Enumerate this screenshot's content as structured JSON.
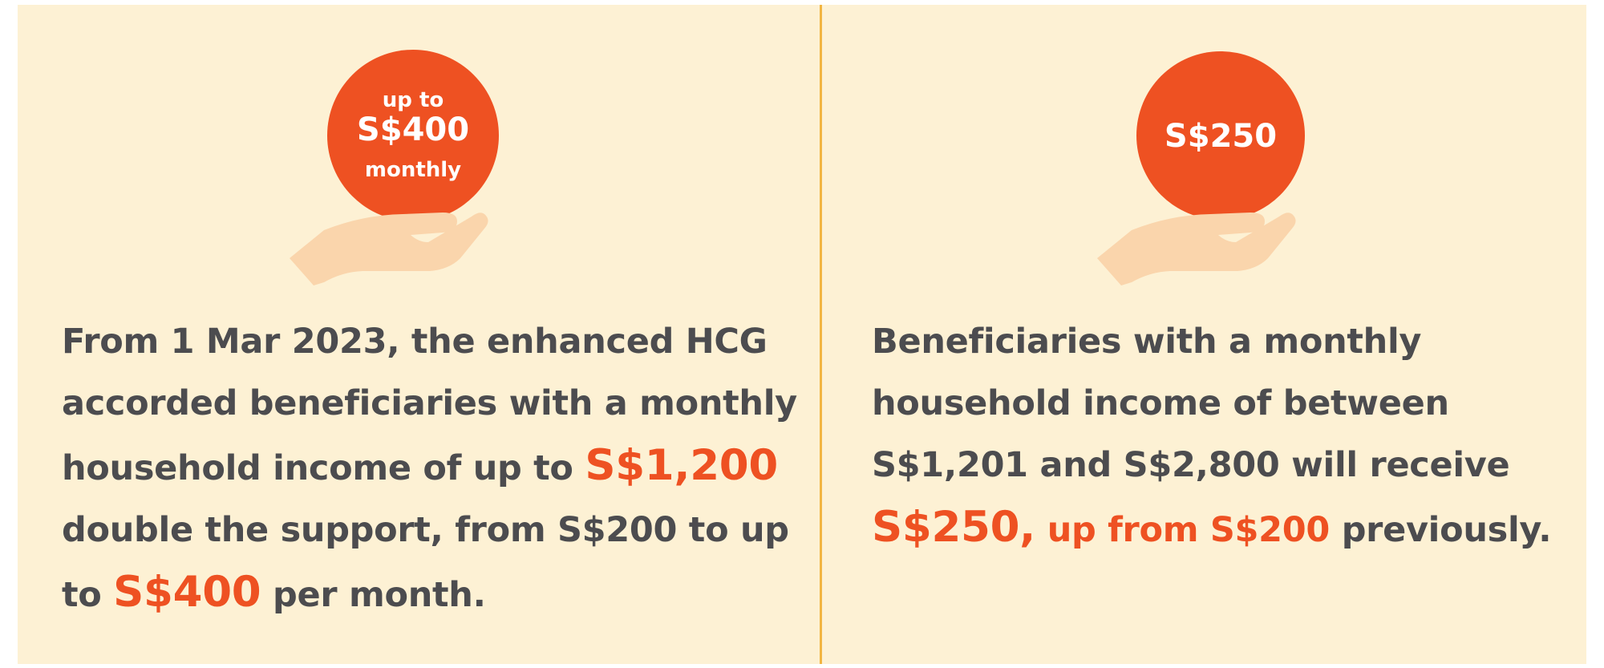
{
  "colors": {
    "background": "#fdf1d4",
    "divider": "#f2b542",
    "coin": "#ee5122",
    "hand": "#fad5ac",
    "text": "#4c4c4f",
    "highlight": "#ee5122"
  },
  "left": {
    "coin": {
      "line1": "up to",
      "line2": "S$400",
      "line3": "monthly"
    },
    "hand_icon": "hand-holding-coin-icon",
    "text": {
      "p1": "From 1 Mar 2023, the enhanced HCG accorded beneficiaries with a monthly household income of up to",
      "hl1": "S$1,200",
      "p2": "double the support, from S$200 to up to",
      "hl2": "S$400",
      "p3": "per month."
    }
  },
  "right": {
    "coin": {
      "line1": "S$250"
    },
    "hand_icon": "hand-holding-coin-icon",
    "text": {
      "p1": "Beneficiaries with a monthly household income of between S$1,201 and S$2,800 will receive",
      "hl1": "S$250,",
      "hl2": "up from S$200",
      "p2": "previously."
    }
  }
}
